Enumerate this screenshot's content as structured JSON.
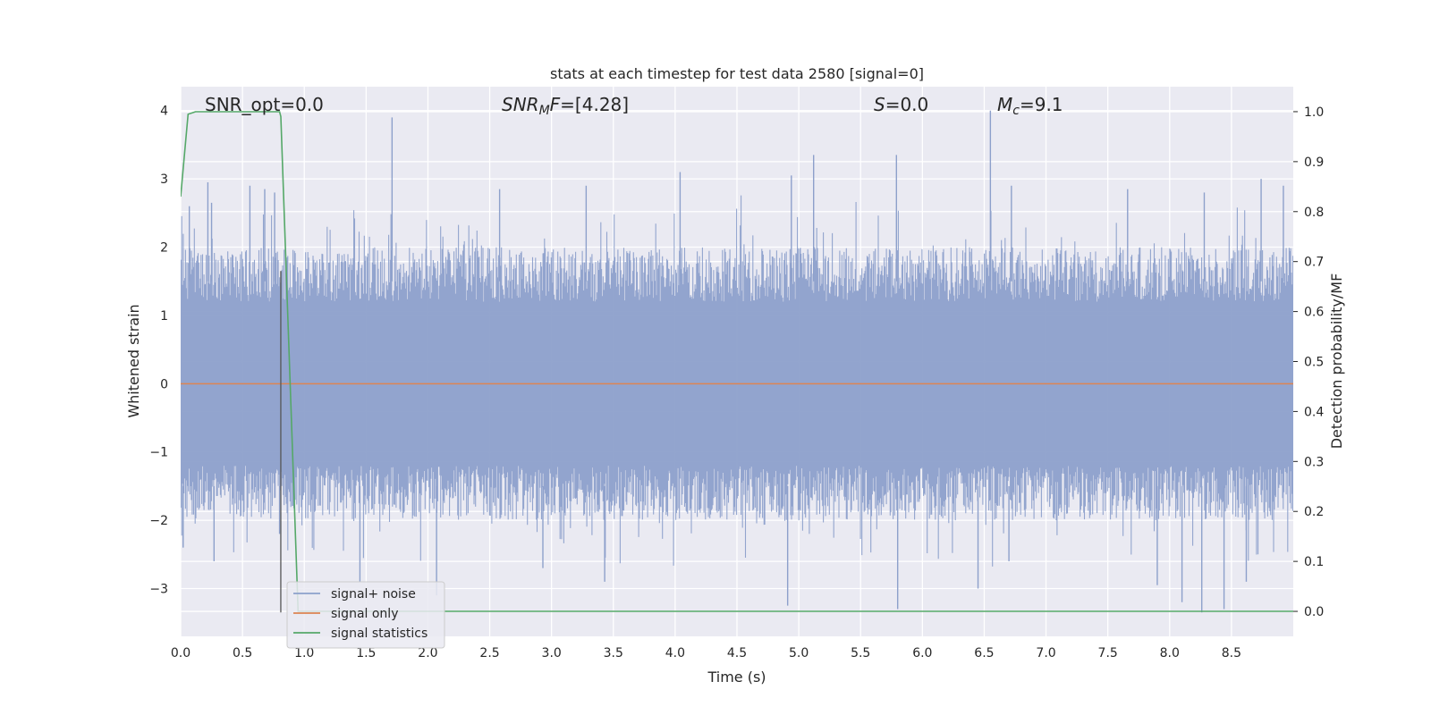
{
  "chart_data": {
    "type": "line",
    "title": "stats at each timestep for test data 2580 [signal=0]",
    "xlabel": "Time (s)",
    "ylabel_left": "Whitened strain",
    "ylabel_right": "Detection probability/MF",
    "xlim": [
      0.0,
      9.0
    ],
    "ylim_left": [
      -3.7,
      4.35
    ],
    "ylim_right": [
      -0.05,
      1.05
    ],
    "x_ticks": [
      "0.0",
      "0.5",
      "1.0",
      "1.5",
      "2.0",
      "2.5",
      "3.0",
      "3.5",
      "4.0",
      "4.5",
      "5.0",
      "5.5",
      "6.0",
      "6.5",
      "7.0",
      "7.5",
      "8.0",
      "8.5"
    ],
    "y_ticks_left": [
      "−3",
      "−2",
      "−1",
      "0",
      "1",
      "2",
      "3",
      "4"
    ],
    "y_ticks_right": [
      "0.0",
      "0.1",
      "0.2",
      "0.3",
      "0.4",
      "0.5",
      "0.6",
      "0.7",
      "0.8",
      "0.9",
      "1.0"
    ],
    "grid": true,
    "legend_position": "lower-left",
    "annotations": {
      "snr_opt": "SNR_opt=0.0",
      "snr_mf_main": "SNR",
      "snr_mf_sub": "M",
      "snr_mf_rest": "F=[4.28]",
      "s_main": "S",
      "s_rest": "=0.0",
      "mc_main": "M",
      "mc_sub": "c",
      "mc_rest": "=9.1"
    },
    "marker_line_x": 0.81,
    "series": [
      {
        "name": "signal+ noise",
        "color": "#8da0cb",
        "axis": "left",
        "description": "whitened noise, approx. uniform spread within about ±1.8 with peaks to about ±3.9",
        "spikes_up": [
          [
            0.07,
            2.6
          ],
          [
            0.22,
            2.95
          ],
          [
            0.25,
            2.65
          ],
          [
            0.56,
            2.9
          ],
          [
            0.68,
            2.85
          ],
          [
            0.76,
            2.8
          ],
          [
            1.71,
            3.9
          ],
          [
            2.58,
            2.85
          ],
          [
            3.28,
            2.9
          ],
          [
            4.04,
            3.1
          ],
          [
            4.94,
            3.05
          ],
          [
            5.12,
            3.35
          ],
          [
            5.79,
            3.35
          ],
          [
            6.55,
            4.0
          ],
          [
            6.72,
            2.9
          ],
          [
            7.66,
            2.85
          ],
          [
            8.28,
            2.8
          ],
          [
            8.74,
            3.0
          ],
          [
            8.92,
            2.9
          ]
        ],
        "spikes_down": [
          [
            0.02,
            -2.4
          ],
          [
            0.27,
            -2.6
          ],
          [
            0.8,
            -2.2
          ],
          [
            1.45,
            -2.9
          ],
          [
            2.07,
            -3.1
          ],
          [
            2.93,
            -2.7
          ],
          [
            3.43,
            -2.9
          ],
          [
            4.91,
            -3.25
          ],
          [
            5.8,
            -3.3
          ],
          [
            6.45,
            -3.0
          ],
          [
            6.7,
            -2.6
          ],
          [
            7.9,
            -2.95
          ],
          [
            8.1,
            -3.2
          ],
          [
            8.26,
            -3.35
          ],
          [
            8.44,
            -3.3
          ],
          [
            8.62,
            -2.9
          ]
        ]
      },
      {
        "name": "signal only",
        "color": "#dd8452",
        "axis": "left",
        "x": [
          0.0,
          9.0
        ],
        "y": [
          0.0,
          0.0
        ]
      },
      {
        "name": "signal statistics",
        "color": "#55a868",
        "axis": "right",
        "x": [
          0.0,
          0.06,
          0.12,
          0.8,
          0.81,
          0.95,
          1.0,
          9.0
        ],
        "y": [
          0.83,
          0.995,
          1.0,
          1.0,
          0.99,
          0.0,
          0.0,
          0.0
        ]
      }
    ]
  }
}
